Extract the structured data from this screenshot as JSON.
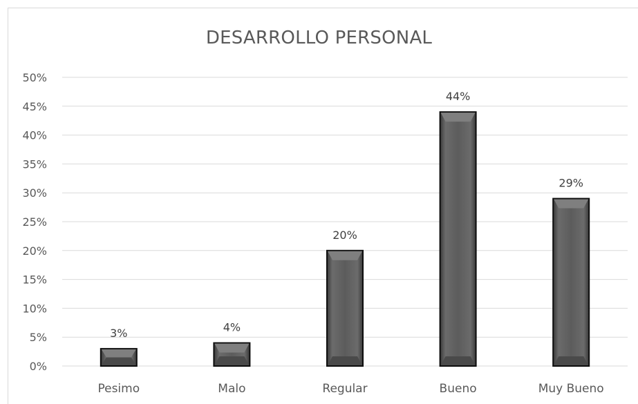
{
  "chart_data": {
    "type": "bar",
    "title": "DESARROLLO PERSONAL",
    "categories": [
      "Pesimo",
      "Malo",
      "Regular",
      "Bueno",
      "Muy Bueno"
    ],
    "values": [
      3,
      4,
      20,
      44,
      29
    ],
    "data_labels": [
      "3%",
      "4%",
      "20%",
      "44%",
      "29%"
    ],
    "y_ticks": [
      "0%",
      "5%",
      "10%",
      "15%",
      "20%",
      "25%",
      "30%",
      "35%",
      "40%",
      "45%",
      "50%"
    ],
    "ylim": [
      0,
      50
    ],
    "grid": true,
    "legend": "none",
    "bar_color": "#595959"
  }
}
